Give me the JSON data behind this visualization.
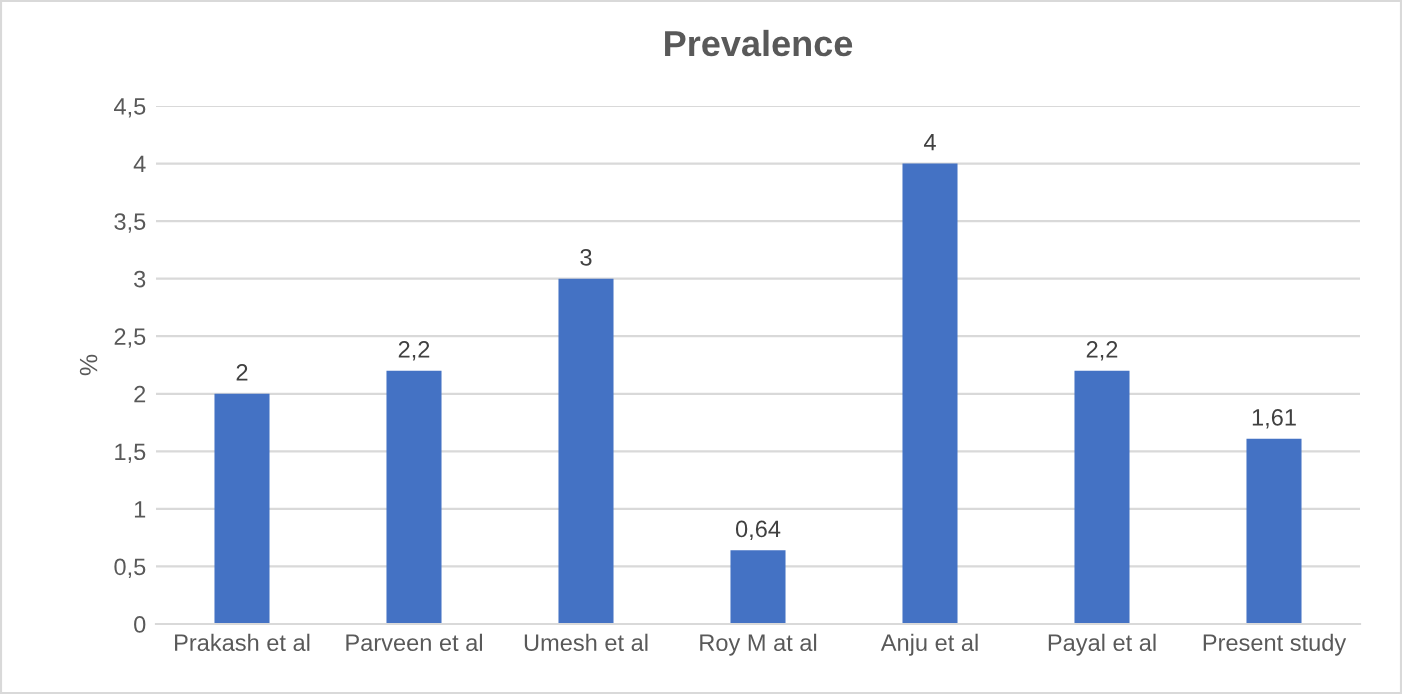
{
  "chart_data": {
    "type": "bar",
    "title": "Prevalence",
    "ylabel": "%",
    "categories": [
      "Prakash et al",
      "Parveen et al",
      "Umesh et al",
      "Roy M at al",
      "Anju et al",
      "Payal et al",
      "Present study"
    ],
    "values": [
      2,
      2.2,
      3,
      0.64,
      4,
      2.2,
      1.61
    ],
    "value_labels": [
      "2",
      "2,2",
      "3",
      "0,64",
      "4",
      "2,2",
      "1,61"
    ],
    "color": "#4472c4",
    "ylim": [
      0,
      4.5
    ],
    "yticks": [
      0,
      {
        "value": 0.5,
        "label": "0,5"
      },
      1,
      {
        "value": 1.5,
        "label": "1,5"
      },
      2,
      {
        "value": 2.5,
        "label": "2,5"
      },
      3,
      {
        "value": 3.5,
        "label": "3,5"
      },
      4,
      {
        "value": 4.5,
        "label": "4,5"
      }
    ],
    "grid": "y",
    "legend": false
  }
}
